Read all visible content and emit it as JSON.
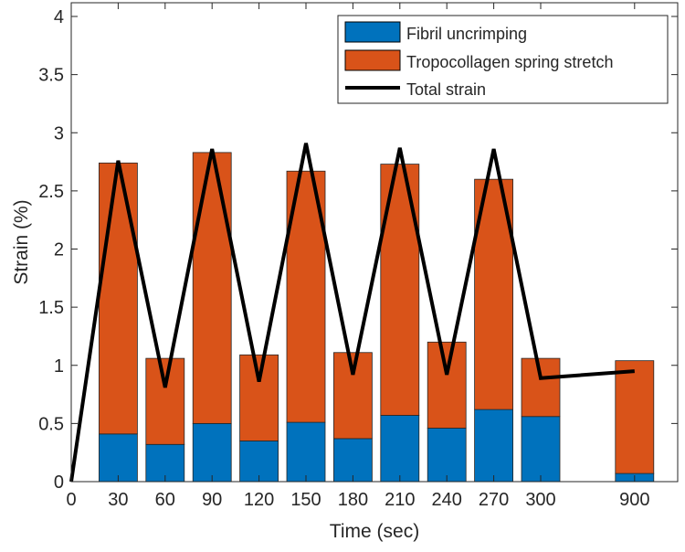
{
  "chart_data": {
    "type": "bar",
    "stacked": true,
    "xlabel": "Time (sec)",
    "ylabel": "Strain (%)",
    "ylim": [
      0,
      4.1
    ],
    "yticks": [
      0,
      0.5,
      1,
      1.5,
      2,
      2.5,
      3,
      3.5,
      4
    ],
    "ytick_labels": [
      "0",
      "0.5",
      "1",
      "1.5",
      "2",
      "2.5",
      "3",
      "3.5",
      "4"
    ],
    "xtick_labels": [
      "0",
      "30",
      "60",
      "90",
      "120",
      "150",
      "180",
      "210",
      "240",
      "270",
      "300",
      "900"
    ],
    "xtick_index": [
      0,
      1,
      2,
      3,
      4,
      5,
      6,
      7,
      8,
      9,
      10,
      12
    ],
    "categories": [
      "30",
      "60",
      "90",
      "120",
      "150",
      "180",
      "210",
      "240",
      "270",
      "300",
      "900"
    ],
    "category_index": [
      1,
      2,
      3,
      4,
      5,
      6,
      7,
      8,
      9,
      10,
      12
    ],
    "series": [
      {
        "name": "Fibril uncrimping",
        "color": "#0072BD",
        "values": [
          0.41,
          0.32,
          0.5,
          0.35,
          0.51,
          0.37,
          0.57,
          0.46,
          0.62,
          0.56,
          0.07
        ]
      },
      {
        "name": "Tropocollagen spring stretch",
        "color": "#D95319",
        "values": [
          2.33,
          0.74,
          2.33,
          0.74,
          2.16,
          0.74,
          2.16,
          0.74,
          1.98,
          0.5,
          0.97
        ]
      }
    ],
    "line": {
      "name": "Total strain",
      "color": "#000000",
      "x_index": [
        0,
        1,
        2,
        3,
        4,
        5,
        6,
        7,
        8,
        9,
        10,
        12
      ],
      "values": [
        0,
        2.76,
        0.81,
        2.86,
        0.86,
        2.91,
        0.92,
        2.87,
        0.92,
        2.86,
        0.89,
        0.95
      ]
    },
    "legend": {
      "placement": "top-right",
      "entries": [
        "Fibril uncrimping",
        "Tropocollagen spring stretch",
        "Total strain"
      ]
    },
    "grid": false
  }
}
